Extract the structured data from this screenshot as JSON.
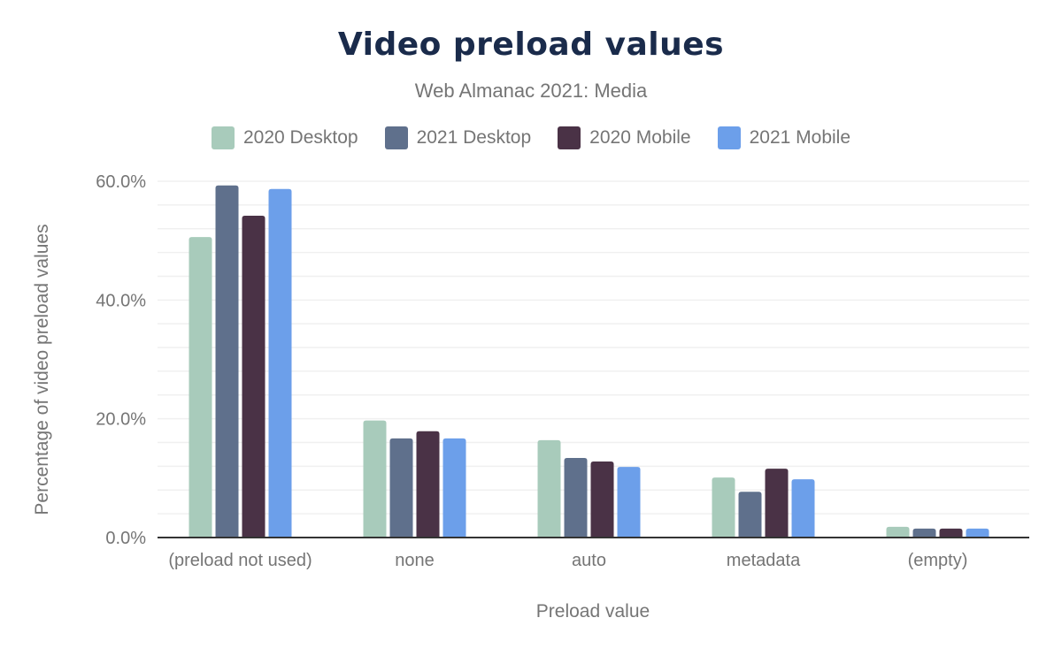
{
  "chart_data": {
    "type": "bar",
    "title": "Video preload values",
    "subtitle": "Web Almanac 2021: Media",
    "xlabel": "Preload value",
    "ylabel": "Percentage of video preload values",
    "ylim": [
      0,
      60
    ],
    "yticks": [
      "0.0%",
      "20.0%",
      "40.0%",
      "60.0%"
    ],
    "grid": true,
    "legend_position": "top",
    "categories": [
      "(preload not used)",
      "none",
      "auto",
      "metadata",
      "(empty)"
    ],
    "series": [
      {
        "name": "2020 Desktop",
        "color": "#a8cbbb",
        "values": [
          50.6,
          19.7,
          16.4,
          10.1,
          1.8
        ]
      },
      {
        "name": "2021 Desktop",
        "color": "#5f708c",
        "values": [
          59.3,
          16.7,
          13.4,
          7.7,
          1.5
        ]
      },
      {
        "name": "2020 Mobile",
        "color": "#4a3246",
        "values": [
          54.2,
          17.9,
          12.8,
          11.6,
          1.5
        ]
      },
      {
        "name": "2021 Mobile",
        "color": "#6c9fea",
        "values": [
          58.7,
          16.7,
          11.9,
          9.8,
          1.5
        ]
      }
    ]
  }
}
